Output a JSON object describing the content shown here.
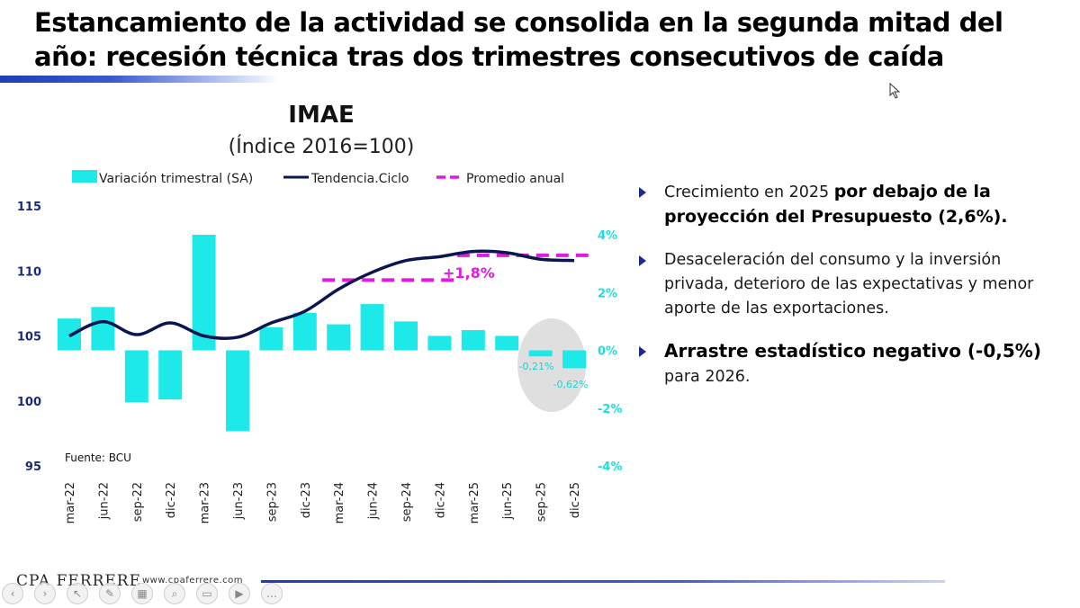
{
  "slide": {
    "title": "Estancamiento de la actividad se consolida en la segunda mitad del año: recesión técnica tras dos trimestres consecutivos de caída"
  },
  "chart_data": {
    "type": "bar",
    "title": "IMAE",
    "subtitle": "(Índice 2016=100)",
    "categories": [
      "mar-22",
      "jun-22",
      "sep-22",
      "dic-22",
      "mar-23",
      "jun-23",
      "sep-23",
      "dic-23",
      "mar-24",
      "jun-24",
      "sep-24",
      "dic-24",
      "mar-25",
      "jun-25",
      "sep-25",
      "dic-25"
    ],
    "series": [
      {
        "name": "Variación trimestral (SA)",
        "type": "bar",
        "axis": "right",
        "color": "#1de9e9",
        "values": [
          1.1,
          1.5,
          -1.8,
          -1.7,
          4.0,
          -2.8,
          0.8,
          1.3,
          0.9,
          1.6,
          1.0,
          0.5,
          0.7,
          0.5,
          -0.21,
          -0.62
        ]
      },
      {
        "name": "Tendencia.Ciclo",
        "type": "line",
        "axis": "left",
        "color": "#0b1650",
        "values": [
          105.0,
          106.1,
          105.1,
          106.0,
          105.0,
          104.9,
          106.0,
          106.9,
          108.6,
          109.9,
          110.8,
          111.1,
          111.5,
          111.4,
          110.9,
          110.8
        ]
      },
      {
        "name": "Promedio anual",
        "type": "dashed",
        "axis": "left",
        "color": "#e11adf",
        "segments": [
          {
            "from": "mar-24",
            "to": "dic-24",
            "value": 109.3
          },
          {
            "from": "mar-25",
            "to": "dic-25",
            "value": 111.2
          }
        ]
      }
    ],
    "y_left": {
      "ticks": [
        95,
        100,
        105,
        110,
        115
      ],
      "range": [
        95,
        115
      ],
      "color": "#1b2a7a"
    },
    "y_right": {
      "ticks": [
        "4%",
        "2%",
        "0%",
        "-2%",
        "-4%"
      ],
      "range": [
        -4,
        4
      ],
      "color": "#19e0e0"
    },
    "annotations": [
      {
        "text": "+1,8%",
        "color": "#e11adf"
      },
      {
        "text": "-0,21%",
        "color": "#19d4d4"
      },
      {
        "text": "-0,62%",
        "color": "#19d4d4"
      }
    ],
    "source": "Fuente: BCU",
    "legend_position": "top"
  },
  "bullets": [
    {
      "text_before": "Crecimiento en 2025 ",
      "bold": "por debajo de la proyección del Presupuesto (2,6%).",
      "text_after": ""
    },
    {
      "text_before": "Desaceleración del consumo y la inversión privada, deterioro de las expectativas y menor aporte de las exportaciones.",
      "bold": "",
      "text_after": ""
    },
    {
      "text_before": "",
      "bold": "Arrastre estadístico negativo (-0,5%)",
      "text_after": " para 2026."
    }
  ],
  "footer": {
    "logo": "CPA FERRERE",
    "url": "www.cpaferrere.com"
  },
  "toolbar": {
    "icons": [
      "arrow-left-icon",
      "arrow-right-icon",
      "pointer-icon",
      "pen-icon",
      "grid-icon",
      "search-icon",
      "subtitles-icon",
      "camera-icon",
      "more-icon"
    ]
  }
}
